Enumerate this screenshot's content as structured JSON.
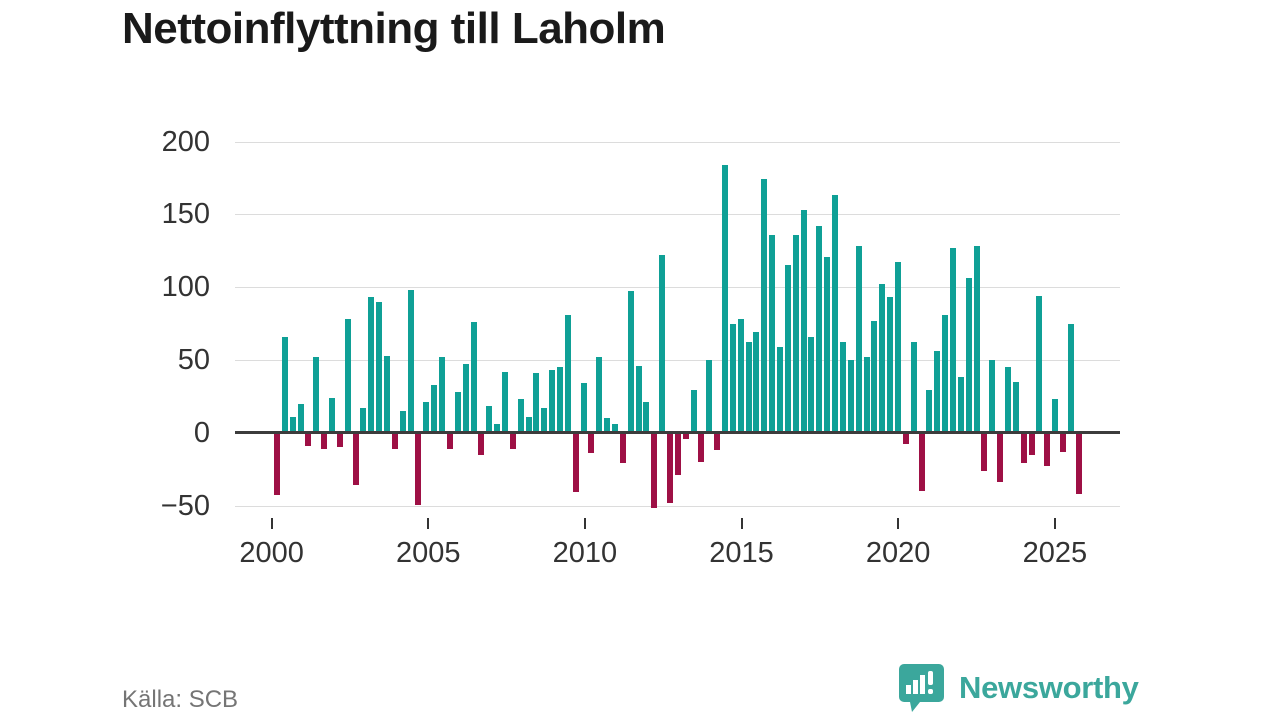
{
  "title": "Nettoinflyttning till Laholm",
  "source": "Källa: SCB",
  "branding": {
    "name": "Newsworthy",
    "logo_icon": "bar-chart-speech-bubble-icon",
    "color": "#3ba79c"
  },
  "chart_data": {
    "type": "bar",
    "title": "Nettoinflyttning till Laholm",
    "frequency": "quarterly",
    "start_period": "2000 Q1",
    "end_period": "2025 Q3",
    "values": [
      -43,
      66,
      11,
      20,
      -9,
      52,
      -11,
      24,
      -10,
      78,
      -36,
      17,
      93,
      90,
      53,
      -11,
      15,
      98,
      -50,
      21,
      33,
      52,
      -11,
      28,
      47,
      76,
      -15,
      18,
      6,
      42,
      -11,
      23,
      11,
      41,
      17,
      43,
      45,
      81,
      -41,
      34,
      -14,
      52,
      10,
      6,
      -21,
      97,
      46,
      21,
      -52,
      122,
      -48,
      -29,
      -4,
      29,
      -20,
      50,
      -12,
      184,
      75,
      78,
      62,
      69,
      174,
      136,
      59,
      115,
      136,
      153,
      66,
      142,
      121,
      163,
      62,
      50,
      128,
      52,
      77,
      102,
      93,
      117,
      -8,
      62,
      -40,
      29,
      56,
      81,
      127,
      38,
      106,
      128,
      -26,
      50,
      -34,
      45,
      35,
      -21,
      -15,
      94,
      -23,
      23,
      -13,
      75,
      -42
    ],
    "x_tick_labels": [
      "2000",
      "2005",
      "2010",
      "2015",
      "2020",
      "2025"
    ],
    "x_tick_years": [
      2000,
      2005,
      2010,
      2015,
      2020,
      2025
    ],
    "y_tick_labels": [
      "200",
      "150",
      "100",
      "50",
      "0",
      "−50"
    ],
    "gridline_values": [
      200,
      150,
      100,
      50,
      0,
      -50
    ],
    "ylim": [
      -55,
      205
    ],
    "grid": true,
    "legend": false,
    "positive_color": "#0fa096",
    "negative_color": "#9e1045",
    "gridline_color": "#dcdcdc",
    "zero_line_color": "#3c3c3c",
    "axis_text_color": "#333333"
  }
}
